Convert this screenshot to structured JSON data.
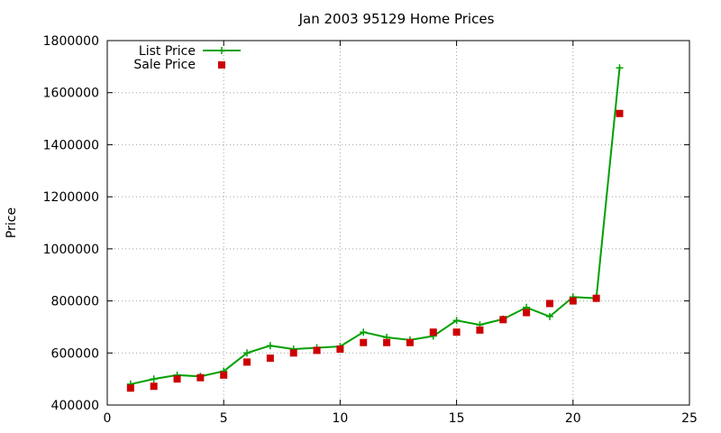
{
  "chart_data": {
    "type": "line",
    "title": "Jan 2003 95129 Home Prices",
    "xlabel": "",
    "ylabel": "Price",
    "xlim": [
      0,
      25
    ],
    "ylim": [
      400000,
      1800000
    ],
    "xticks": [
      "0",
      "5",
      "10",
      "15",
      "20",
      "25"
    ],
    "yticks": [
      "400000",
      "600000",
      "800000",
      "1000000",
      "1200000",
      "1400000",
      "1600000",
      "1800000"
    ],
    "grid": true,
    "legend_position": "top-left",
    "series": [
      {
        "name": "List Price",
        "style": "line+plus",
        "color": "#00a000",
        "x": [
          1,
          2,
          3,
          4,
          5,
          6,
          7,
          8,
          9,
          10,
          11,
          12,
          13,
          14,
          15,
          16,
          17,
          18,
          19,
          20,
          21,
          22
        ],
        "y": [
          480000,
          500000,
          515000,
          510000,
          530000,
          600000,
          628000,
          615000,
          620000,
          625000,
          680000,
          660000,
          650000,
          665000,
          725000,
          708000,
          730000,
          775000,
          740000,
          815000,
          810000,
          1695000
        ]
      },
      {
        "name": "Sale Price",
        "style": "square-markers",
        "color": "#cc0000",
        "x": [
          1,
          2,
          3,
          4,
          5,
          6,
          7,
          8,
          9,
          10,
          11,
          12,
          13,
          14,
          15,
          16,
          17,
          18,
          19,
          20,
          21,
          22
        ],
        "y": [
          465000,
          472000,
          500000,
          505000,
          515000,
          565000,
          580000,
          600000,
          610000,
          615000,
          640000,
          640000,
          640000,
          680000,
          680000,
          688000,
          728000,
          755000,
          790000,
          800000,
          810000,
          1520000
        ]
      }
    ]
  }
}
